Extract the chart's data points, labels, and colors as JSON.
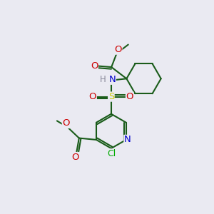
{
  "bg_color": "#eaeaf2",
  "atom_colors": {
    "C": "#1a5c1a",
    "N": "#0000cc",
    "O": "#cc0000",
    "S": "#cccc00",
    "Cl": "#00aa00",
    "H": "#888899"
  },
  "bond_color": "#1a5c1a",
  "lw": 1.5
}
